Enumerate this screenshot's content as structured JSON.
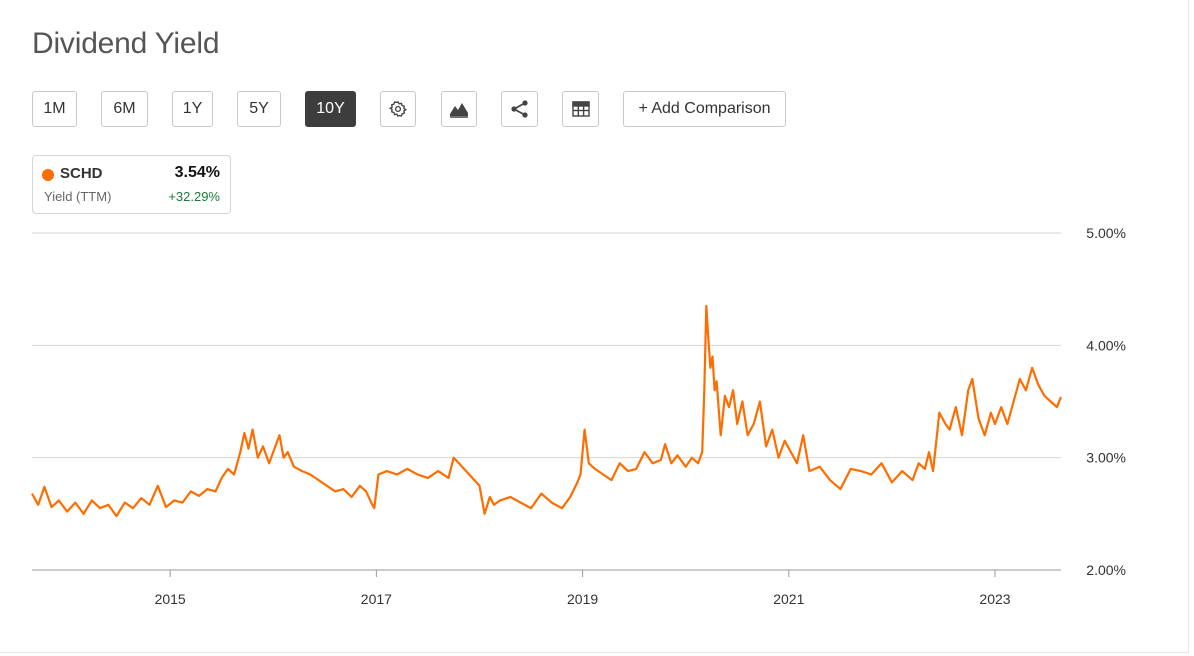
{
  "header": {
    "title": "Dividend Yield"
  },
  "toolbar": {
    "ranges": [
      "1M",
      "6M",
      "1Y",
      "5Y",
      "10Y"
    ],
    "active_range": "10Y",
    "icons": [
      "gear-icon",
      "mountain-chart-icon",
      "share-icon",
      "table-icon"
    ],
    "add_comparison_label": "+ Add Comparison"
  },
  "legend": {
    "symbol": "SCHD",
    "value": "3.54%",
    "sub_label": "Yield (TTM)",
    "change": "+32.29%",
    "color": "#ff6d00",
    "change_color": "#1b7a3a"
  },
  "chart_data": {
    "type": "line",
    "title": "",
    "xlabel": "",
    "ylabel": "",
    "ylim": [
      2.0,
      5.0
    ],
    "xlim": [
      2013.66,
      2023.64
    ],
    "y_ticks": [
      {
        "value": 5.0,
        "label": "5.00%"
      },
      {
        "value": 4.0,
        "label": "4.00%"
      },
      {
        "value": 3.0,
        "label": "3.00%"
      },
      {
        "value": 2.0,
        "label": "2.00%"
      }
    ],
    "x_ticks": [
      {
        "value": 2015,
        "label": "2015"
      },
      {
        "value": 2017,
        "label": "2017"
      },
      {
        "value": 2019,
        "label": "2019"
      },
      {
        "value": 2021,
        "label": "2021"
      },
      {
        "value": 2023,
        "label": "2023"
      }
    ],
    "grid": "horizontal",
    "series": [
      {
        "name": "SCHD",
        "color": "#ff6d00",
        "x": [
          2013.66,
          2013.72,
          2013.78,
          2013.85,
          2013.92,
          2014.0,
          2014.08,
          2014.16,
          2014.24,
          2014.32,
          2014.4,
          2014.48,
          2014.56,
          2014.64,
          2014.72,
          2014.8,
          2014.88,
          2014.96,
          2015.04,
          2015.12,
          2015.2,
          2015.28,
          2015.36,
          2015.44,
          2015.5,
          2015.56,
          2015.62,
          2015.68,
          2015.72,
          2015.76,
          2015.8,
          2015.85,
          2015.9,
          2015.96,
          2016.02,
          2016.06,
          2016.1,
          2016.14,
          2016.2,
          2016.28,
          2016.36,
          2016.44,
          2016.52,
          2016.6,
          2016.68,
          2016.76,
          2016.84,
          2016.9,
          2016.95,
          2016.98,
          2017.02,
          2017.1,
          2017.2,
          2017.3,
          2017.4,
          2017.5,
          2017.6,
          2017.7,
          2017.75,
          2017.8,
          2017.9,
          2018.0,
          2018.05,
          2018.1,
          2018.14,
          2018.2,
          2018.3,
          2018.4,
          2018.5,
          2018.6,
          2018.7,
          2018.8,
          2018.88,
          2018.95,
          2018.98,
          2019.02,
          2019.06,
          2019.12,
          2019.2,
          2019.28,
          2019.36,
          2019.44,
          2019.52,
          2019.6,
          2019.68,
          2019.76,
          2019.8,
          2019.86,
          2019.92,
          2020.0,
          2020.06,
          2020.12,
          2020.16,
          2020.18,
          2020.2,
          2020.22,
          2020.24,
          2020.26,
          2020.28,
          2020.3,
          2020.34,
          2020.38,
          2020.42,
          2020.46,
          2020.5,
          2020.55,
          2020.6,
          2020.66,
          2020.72,
          2020.78,
          2020.84,
          2020.9,
          2020.96,
          2021.02,
          2021.08,
          2021.14,
          2021.2,
          2021.3,
          2021.4,
          2021.5,
          2021.6,
          2021.7,
          2021.8,
          2021.9,
          2022.0,
          2022.1,
          2022.2,
          2022.26,
          2022.32,
          2022.36,
          2022.4,
          2022.46,
          2022.52,
          2022.56,
          2022.62,
          2022.68,
          2022.74,
          2022.78,
          2022.84,
          2022.9,
          2022.96,
          2023.0,
          2023.06,
          2023.12,
          2023.18,
          2023.24,
          2023.3,
          2023.36,
          2023.42,
          2023.48,
          2023.54,
          2023.6,
          2023.64
        ],
        "y": [
          2.68,
          2.58,
          2.74,
          2.56,
          2.62,
          2.52,
          2.6,
          2.5,
          2.62,
          2.55,
          2.58,
          2.48,
          2.6,
          2.55,
          2.64,
          2.58,
          2.75,
          2.56,
          2.62,
          2.6,
          2.7,
          2.66,
          2.72,
          2.7,
          2.82,
          2.9,
          2.85,
          3.05,
          3.22,
          3.08,
          3.25,
          3.0,
          3.1,
          2.95,
          3.1,
          3.2,
          3.0,
          3.05,
          2.92,
          2.88,
          2.85,
          2.8,
          2.75,
          2.7,
          2.72,
          2.65,
          2.75,
          2.7,
          2.6,
          2.55,
          2.85,
          2.88,
          2.85,
          2.9,
          2.85,
          2.82,
          2.88,
          2.82,
          3.0,
          2.95,
          2.85,
          2.75,
          2.5,
          2.65,
          2.58,
          2.62,
          2.65,
          2.6,
          2.55,
          2.68,
          2.6,
          2.55,
          2.65,
          2.78,
          2.85,
          3.25,
          2.95,
          2.9,
          2.85,
          2.8,
          2.95,
          2.88,
          2.9,
          3.05,
          2.95,
          2.98,
          3.12,
          2.95,
          3.02,
          2.92,
          3.0,
          2.95,
          3.05,
          3.6,
          4.35,
          4.05,
          3.8,
          3.9,
          3.6,
          3.68,
          3.2,
          3.55,
          3.45,
          3.6,
          3.3,
          3.5,
          3.2,
          3.3,
          3.5,
          3.1,
          3.25,
          3.0,
          3.15,
          3.05,
          2.95,
          3.2,
          2.88,
          2.92,
          2.8,
          2.72,
          2.9,
          2.88,
          2.85,
          2.95,
          2.78,
          2.88,
          2.8,
          2.95,
          2.9,
          3.05,
          2.88,
          3.4,
          3.3,
          3.25,
          3.45,
          3.2,
          3.6,
          3.7,
          3.35,
          3.2,
          3.4,
          3.3,
          3.45,
          3.3,
          3.5,
          3.7,
          3.6,
          3.8,
          3.65,
          3.55,
          3.5,
          3.45,
          3.54
        ]
      }
    ]
  }
}
